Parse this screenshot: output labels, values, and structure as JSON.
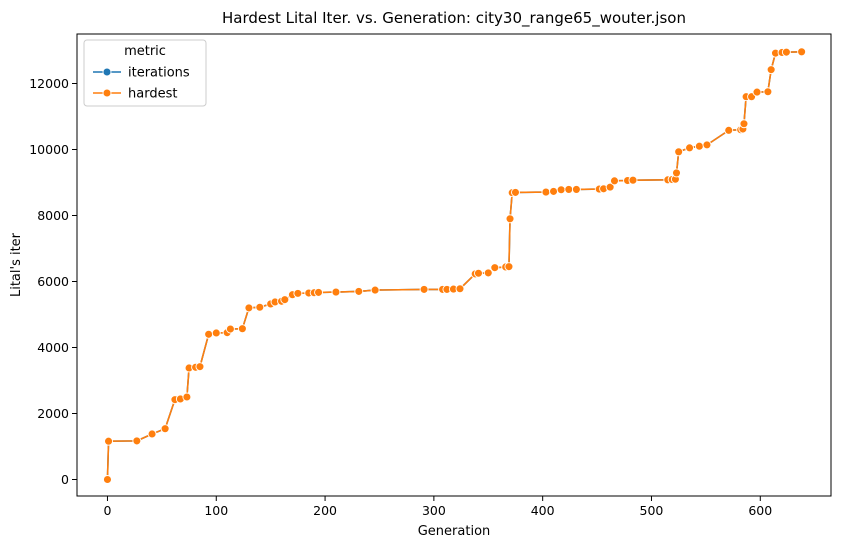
{
  "chart_data": {
    "type": "line",
    "title": "Hardest Lital Iter. vs. Generation: city30_range65_wouter.json",
    "xlabel": "Generation",
    "ylabel": "Lital's iter",
    "xlim": [
      -28,
      665
    ],
    "ylim": [
      -500,
      13500
    ],
    "xticks": [
      0,
      100,
      200,
      300,
      400,
      500,
      600
    ],
    "yticks": [
      0,
      2000,
      4000,
      6000,
      8000,
      10000,
      12000
    ],
    "grid": false,
    "legend": {
      "title": "metric",
      "position": "top-left"
    },
    "series": [
      {
        "name": "iterations",
        "color": "#1f77b4",
        "x": [
          0,
          1,
          27,
          41,
          53,
          62,
          67,
          73,
          75,
          81,
          85,
          93,
          100,
          110,
          113,
          124,
          130,
          140,
          150,
          154,
          160,
          163,
          170,
          175,
          185,
          190,
          194,
          210,
          231,
          246,
          291,
          308,
          312,
          318,
          324,
          338,
          341,
          350,
          356,
          366,
          369,
          370,
          372,
          375,
          403,
          410,
          417,
          424,
          431,
          452,
          456,
          462,
          466,
          478,
          483,
          515,
          519,
          522,
          523,
          525,
          535,
          544,
          551,
          571,
          582,
          584,
          585,
          587,
          592,
          597,
          607,
          610,
          614,
          620,
          624,
          638
        ],
        "y": [
          0,
          1160,
          1170,
          1380,
          1540,
          2420,
          2440,
          2500,
          3380,
          3400,
          3420,
          4400,
          4440,
          4450,
          4560,
          4570,
          5200,
          5220,
          5320,
          5380,
          5400,
          5450,
          5600,
          5640,
          5650,
          5660,
          5670,
          5680,
          5700,
          5740,
          5760,
          5760,
          5760,
          5770,
          5780,
          6230,
          6250,
          6260,
          6420,
          6440,
          6450,
          7900,
          8690,
          8700,
          8710,
          8730,
          8780,
          8790,
          8790,
          8800,
          8810,
          8860,
          9050,
          9060,
          9070,
          9080,
          9090,
          9100,
          9290,
          9930,
          10050,
          10100,
          10140,
          10580,
          10600,
          10620,
          10780,
          11600,
          11600,
          11740,
          11750,
          12420,
          12920,
          12940,
          12950,
          12960
        ]
      },
      {
        "name": "hardest",
        "color": "#ff7f0e",
        "x": [
          0,
          1,
          27,
          41,
          53,
          62,
          67,
          73,
          75,
          81,
          85,
          93,
          100,
          110,
          113,
          124,
          130,
          140,
          150,
          154,
          160,
          163,
          170,
          175,
          185,
          190,
          194,
          210,
          231,
          246,
          291,
          308,
          312,
          318,
          324,
          338,
          341,
          350,
          356,
          366,
          369,
          370,
          372,
          375,
          403,
          410,
          417,
          424,
          431,
          452,
          456,
          462,
          466,
          478,
          483,
          515,
          519,
          522,
          523,
          525,
          535,
          544,
          551,
          571,
          582,
          584,
          585,
          587,
          592,
          597,
          607,
          610,
          614,
          620,
          624,
          638
        ],
        "y": [
          0,
          1160,
          1170,
          1380,
          1540,
          2420,
          2440,
          2500,
          3380,
          3400,
          3420,
          4400,
          4440,
          4450,
          4560,
          4570,
          5200,
          5220,
          5320,
          5380,
          5400,
          5450,
          5600,
          5640,
          5650,
          5660,
          5670,
          5680,
          5700,
          5740,
          5760,
          5760,
          5760,
          5770,
          5780,
          6230,
          6250,
          6260,
          6420,
          6440,
          6450,
          7900,
          8690,
          8700,
          8710,
          8730,
          8780,
          8790,
          8790,
          8800,
          8810,
          8860,
          9050,
          9060,
          9070,
          9080,
          9090,
          9100,
          9290,
          9930,
          10050,
          10100,
          10140,
          10580,
          10600,
          10620,
          10780,
          11600,
          11600,
          11740,
          11750,
          12420,
          12920,
          12940,
          12950,
          12960
        ]
      }
    ]
  }
}
